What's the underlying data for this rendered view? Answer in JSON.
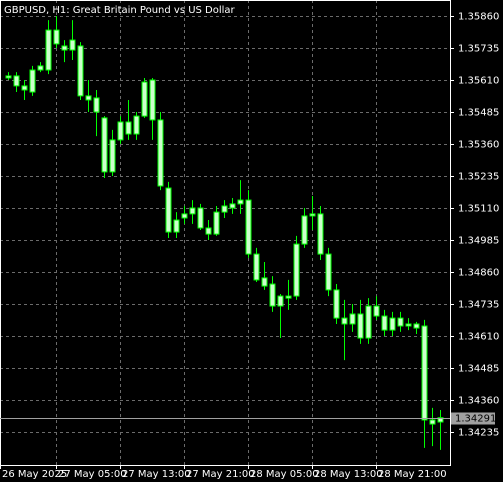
{
  "chart_data": {
    "type": "candlestick",
    "title": "GBPUSD, H1:  Great Britain Pound vs US Dollar",
    "categories": [
      "26 May 2025",
      null,
      null,
      null,
      null,
      null,
      null,
      "27 May 05:00",
      null,
      null,
      null,
      null,
      null,
      null,
      null,
      "27 May 13:00",
      null,
      null,
      null,
      null,
      null,
      null,
      null,
      "27 May 21:00",
      null,
      null,
      null,
      null,
      null,
      null,
      null,
      "28 May 05:00",
      null,
      null,
      null,
      null,
      null,
      null,
      null,
      "28 May 13:00",
      null,
      null,
      null,
      null,
      null,
      null,
      null,
      "28 May 21:00",
      null,
      null,
      null,
      null,
      null,
      null,
      null
    ],
    "open": [
      1.35626,
      1.35626,
      1.35587,
      1.35563,
      1.35649,
      1.35649,
      1.35805,
      1.35743,
      1.35727,
      1.35743,
      1.35548,
      1.3554,
      1.35462,
      1.35251,
      1.35376,
      1.35446,
      1.35399,
      1.35469,
      1.3561,
      1.35454,
      1.35188,
      1.35016,
      1.35071,
      1.35087,
      1.3511,
      1.35032,
      1.35008,
      1.35094,
      1.3511,
      1.35126,
      1.35141,
      1.3493,
      1.34837,
      1.34813,
      1.34727,
      1.34766,
      1.34766,
      1.34969,
      1.35079,
      1.35087,
      1.3493,
      1.3479,
      1.3468,
      1.34657,
      1.34696,
      1.34602,
      1.34727,
      1.34688,
      1.34633,
      1.3468,
      1.34649,
      1.34657,
      1.34649,
      1.34282,
      1.34274
    ],
    "high": [
      1.35641,
      1.35641,
      1.3561,
      1.35665,
      1.3568,
      1.35844,
      1.3586,
      1.35766,
      1.35844,
      1.35758,
      1.3561,
      1.35571,
      1.35469,
      1.35415,
      1.35469,
      1.35532,
      1.35485,
      1.35618,
      1.35618,
      1.35485,
      1.35212,
      1.35094,
      1.35118,
      1.35141,
      1.35126,
      1.35063,
      1.35118,
      1.35141,
      1.35149,
      1.35219,
      1.3518,
      1.34954,
      1.34899,
      1.34844,
      1.34774,
      1.34829,
      1.35001,
      1.3511,
      1.35157,
      1.35118,
      1.34954,
      1.34813,
      1.34751,
      1.34735,
      1.34751,
      1.34758,
      1.34766,
      1.34712,
      1.34704,
      1.34704,
      1.3468,
      1.34665,
      1.34673,
      1.34329,
      1.34321
    ],
    "low": [
      1.3561,
      1.35563,
      1.35532,
      1.35548,
      1.35641,
      1.35633,
      1.35735,
      1.3568,
      1.35688,
      1.35532,
      1.35485,
      1.35391,
      1.35227,
      1.35235,
      1.3536,
      1.35376,
      1.35376,
      1.35462,
      1.35376,
      1.3518,
      1.34993,
      1.34993,
      1.35048,
      1.35048,
      1.35024,
      1.34985,
      1.35001,
      1.35071,
      1.35087,
      1.35087,
      1.34915,
      1.34821,
      1.3479,
      1.34704,
      1.34602,
      1.34712,
      1.34751,
      1.34954,
      1.35024,
      1.34907,
      1.34766,
      1.34657,
      1.34516,
      1.34626,
      1.34579,
      1.34579,
      1.34673,
      1.3461,
      1.3461,
      1.34626,
      1.34633,
      1.34618,
      1.34173,
      1.3418,
      1.34165
    ],
    "close": [
      1.35618,
      1.35587,
      1.35571,
      1.35649,
      1.35665,
      1.35805,
      1.35751,
      1.35727,
      1.35766,
      1.35548,
      1.35532,
      1.35485,
      1.35251,
      1.35376,
      1.35446,
      1.35399,
      1.35469,
      1.35602,
      1.35454,
      1.35196,
      1.35016,
      1.35063,
      1.35087,
      1.3511,
      1.35032,
      1.35008,
      1.35094,
      1.35118,
      1.35126,
      1.35141,
      1.3493,
      1.34829,
      1.34805,
      1.34727,
      1.34766,
      1.34758,
      1.34969,
      1.35079,
      1.35087,
      1.3493,
      1.3479,
      1.3468,
      1.34657,
      1.34696,
      1.34602,
      1.34727,
      1.34688,
      1.34633,
      1.3468,
      1.34649,
      1.34657,
      1.34641,
      1.34282,
      1.34266,
      1.34291
    ],
    "current": 1.34291,
    "color": "#00ff00",
    "body_color": "#ccffcc",
    "ylim": [
      1.341061,
      1.359225
    ],
    "yticks": [
      {
        "value": 1.3586,
        "label": "1.35860"
      },
      1.35735,
      {
        "value": 1.3561,
        "label": "1.35610"
      },
      1.35485,
      {
        "value": 1.3536,
        "label": "1.35360"
      },
      1.35235,
      {
        "value": 1.3511,
        "label": "1.35110"
      },
      1.34985,
      {
        "value": 1.3486,
        "label": "1.34860"
      },
      1.34735,
      {
        "value": 1.3461,
        "label": "1.34610"
      },
      1.34485,
      {
        "value": 1.3436,
        "label": "1.34360"
      },
      1.34235
    ],
    "grid": true
  }
}
